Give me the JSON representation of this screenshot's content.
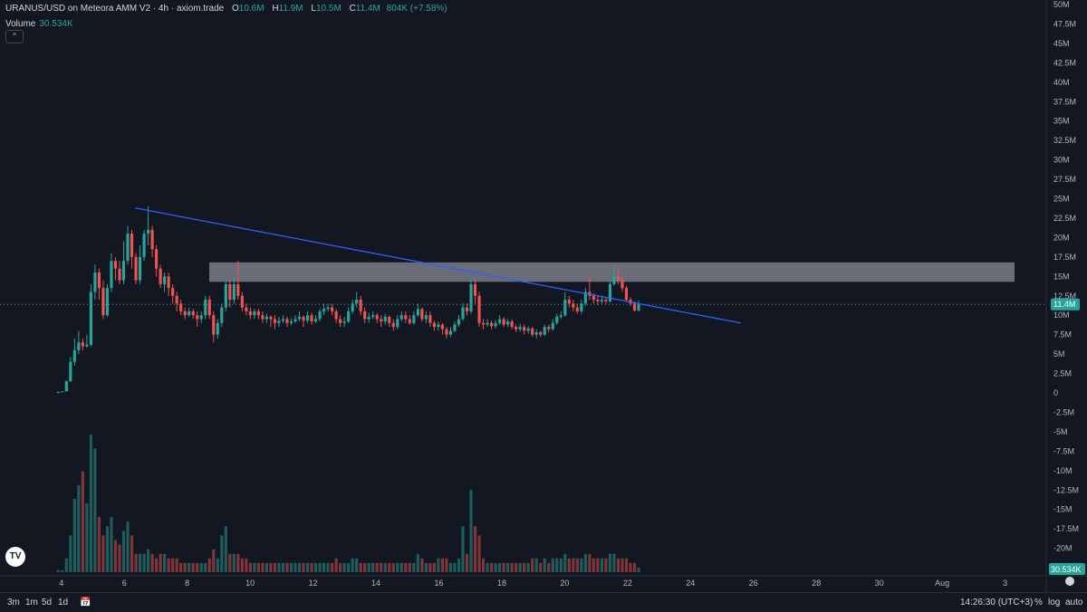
{
  "legend": {
    "symbol": "URANUS/USD on Meteora AMM V2 · 4h · axiom.trade",
    "o_label": "O",
    "o": "10.6M",
    "h_label": "H",
    "h": "11.9M",
    "l_label": "L",
    "l": "10.5M",
    "c_label": "C",
    "c": "11.4M",
    "change": "804K (+7.58%)"
  },
  "volume_legend": {
    "label": "Volume",
    "value": "30.534K"
  },
  "collapse_icon": "chevron-up-icon",
  "colors": {
    "up": "#26a69a",
    "down": "#ef5350",
    "trendline": "#2962ff",
    "zone": "#b2b5be",
    "bg": "#131722"
  },
  "price_label": "11.4M",
  "volume_label": "30.534K",
  "bottombar": {
    "ranges": [
      "3m",
      "1m",
      "5d",
      "1d"
    ],
    "time": "14:26:30 (UTC+3)",
    "percent": "%",
    "log": "log",
    "auto": "auto"
  },
  "chart_data": {
    "type": "candlestick",
    "y_axis": {
      "min": -22.5,
      "max": 50,
      "unit": "M",
      "ticks": [
        "50M",
        "47.5M",
        "45M",
        "42.5M",
        "40M",
        "37.5M",
        "35M",
        "32.5M",
        "30M",
        "27.5M",
        "25M",
        "22.5M",
        "20M",
        "17.5M",
        "15M",
        "12.5M",
        "10M",
        "7.5M",
        "5M",
        "2.5M",
        "0",
        "-2.5M",
        "-5M",
        "-7.5M",
        "-10M",
        "-12.5M",
        "-15M",
        "-17.5M",
        "-20M"
      ]
    },
    "x_axis": {
      "day_range": [
        3.2,
        34.3
      ],
      "ticks": [
        {
          "label": "4",
          "day": 4
        },
        {
          "label": "6",
          "day": 6
        },
        {
          "label": "8",
          "day": 8
        },
        {
          "label": "10",
          "day": 10
        },
        {
          "label": "12",
          "day": 12
        },
        {
          "label": "14",
          "day": 14
        },
        {
          "label": "16",
          "day": 16
        },
        {
          "label": "18",
          "day": 18
        },
        {
          "label": "20",
          "day": 20
        },
        {
          "label": "22",
          "day": 22
        },
        {
          "label": "24",
          "day": 24
        },
        {
          "label": "26",
          "day": 26
        },
        {
          "label": "28",
          "day": 28
        },
        {
          "label": "30",
          "day": 30
        },
        {
          "label": "Aug",
          "day": 32
        },
        {
          "label": "3",
          "day": 34
        }
      ]
    },
    "candles": [
      [
        0.1,
        0.1,
        0.2,
        0.1,
        0.5
      ],
      [
        0.2,
        0.2,
        0.2,
        0.2,
        0.4
      ],
      [
        0.2,
        1.5,
        1.6,
        0.2,
        3
      ],
      [
        1.5,
        4,
        4.6,
        1.4,
        8
      ],
      [
        4,
        5.5,
        7,
        3.5,
        16
      ],
      [
        5.5,
        6.5,
        8,
        5,
        19
      ],
      [
        6.5,
        6,
        7,
        5.5,
        22
      ],
      [
        6,
        6.2,
        7.5,
        5.8,
        15
      ],
      [
        6.2,
        13,
        14,
        6,
        30
      ],
      [
        13,
        15.5,
        16.5,
        12,
        27
      ],
      [
        15.5,
        13.5,
        16,
        12,
        12
      ],
      [
        13.5,
        10,
        14.5,
        9.5,
        8
      ],
      [
        10,
        13.5,
        14,
        9.8,
        10
      ],
      [
        13.5,
        17,
        18,
        13,
        12
      ],
      [
        17,
        16,
        17.5,
        14.5,
        7
      ],
      [
        16,
        14.5,
        17,
        14,
        6
      ],
      [
        14.5,
        17,
        19.5,
        14,
        9
      ],
      [
        17,
        20.5,
        21.5,
        16.5,
        11
      ],
      [
        20.5,
        17.5,
        21,
        16,
        8
      ],
      [
        17.5,
        14.5,
        18,
        14,
        4
      ],
      [
        14.5,
        17.5,
        19,
        14,
        4
      ],
      [
        17.5,
        20.5,
        21,
        17,
        4
      ],
      [
        20.5,
        21,
        24,
        19,
        5
      ],
      [
        21,
        18.5,
        21.5,
        17.5,
        4
      ],
      [
        18.5,
        16,
        19,
        15,
        3
      ],
      [
        16,
        14,
        16.5,
        13.5,
        4
      ],
      [
        14,
        15,
        15.5,
        13,
        4
      ],
      [
        15,
        13.5,
        15.5,
        12.5,
        3
      ],
      [
        13.5,
        12.5,
        14,
        11.5,
        3
      ],
      [
        12.5,
        11.5,
        13,
        10.5,
        3
      ],
      [
        11.5,
        10.5,
        12,
        10,
        2
      ],
      [
        10.5,
        10,
        11,
        9.5,
        2
      ],
      [
        10,
        10.5,
        11,
        9.8,
        2
      ],
      [
        10.5,
        10,
        10.8,
        9.5,
        2
      ],
      [
        10,
        9.5,
        10.5,
        8.5,
        2
      ],
      [
        9.5,
        10,
        10.5,
        9,
        2
      ],
      [
        10,
        12,
        12.5,
        9.5,
        2
      ],
      [
        12,
        10,
        12.5,
        9.5,
        3
      ],
      [
        10,
        7.5,
        10.5,
        6.5,
        5
      ],
      [
        7.5,
        9,
        9.5,
        7,
        3
      ],
      [
        9,
        11,
        11.5,
        8.5,
        8
      ],
      [
        11,
        14,
        14.5,
        10.5,
        10
      ],
      [
        14,
        12,
        14.5,
        11,
        4
      ],
      [
        12,
        14,
        15,
        11.5,
        4
      ],
      [
        14,
        12.5,
        17,
        12,
        4
      ],
      [
        12.5,
        11,
        13,
        10.5,
        3
      ],
      [
        11,
        10.5,
        11.5,
        10,
        3
      ],
      [
        10.5,
        10,
        11,
        9.5,
        2
      ],
      [
        10,
        10.5,
        10.8,
        9.5,
        2
      ],
      [
        10.5,
        10,
        10.8,
        9.5,
        2
      ],
      [
        10,
        9.5,
        10.5,
        9,
        2
      ],
      [
        9.5,
        9.8,
        10.2,
        9,
        2
      ],
      [
        9.8,
        9.5,
        10,
        8.5,
        2
      ],
      [
        9.5,
        9,
        10,
        8.2,
        2
      ],
      [
        9,
        9.3,
        9.8,
        8.5,
        2
      ],
      [
        9.3,
        9.5,
        10,
        9,
        2
      ],
      [
        9.5,
        9,
        9.8,
        8.5,
        2
      ],
      [
        9,
        9.2,
        9.6,
        8.7,
        2
      ],
      [
        9.2,
        9.5,
        10,
        9,
        2
      ],
      [
        9.5,
        9.8,
        10.5,
        9.2,
        2
      ],
      [
        9.8,
        9.3,
        10,
        8.5,
        2
      ],
      [
        9.3,
        10,
        10.5,
        9,
        2
      ],
      [
        10,
        9.2,
        10.3,
        8.8,
        2
      ],
      [
        9.2,
        9.5,
        10,
        9,
        2
      ],
      [
        9.5,
        10.5,
        10.8,
        9.2,
        2
      ],
      [
        10.5,
        10.8,
        11.5,
        10,
        2
      ],
      [
        10.8,
        11,
        11.5,
        10.5,
        2
      ],
      [
        11,
        10.5,
        11.5,
        10,
        2
      ],
      [
        10.5,
        9.5,
        10.8,
        9,
        3
      ],
      [
        9.5,
        9,
        10,
        8.5,
        2
      ],
      [
        9,
        9.2,
        9.8,
        8.5,
        2
      ],
      [
        9.2,
        10.5,
        11,
        9,
        2
      ],
      [
        10.5,
        11.5,
        12,
        10.2,
        3
      ],
      [
        11.5,
        12,
        13,
        11,
        3
      ],
      [
        12,
        10.5,
        12.5,
        10,
        2
      ],
      [
        10.5,
        9.5,
        11,
        9,
        2
      ],
      [
        9.5,
        9.8,
        10.3,
        9,
        2
      ],
      [
        9.8,
        10,
        10.5,
        9.5,
        2
      ],
      [
        10,
        9.5,
        10.3,
        9,
        2
      ],
      [
        9.5,
        9.2,
        10,
        8.5,
        2
      ],
      [
        9.2,
        9.8,
        10.2,
        8.8,
        2
      ],
      [
        9.8,
        9,
        10,
        8.5,
        2
      ],
      [
        9,
        8.5,
        9.5,
        8,
        2
      ],
      [
        8.5,
        9.5,
        10,
        8.2,
        2
      ],
      [
        9.5,
        10,
        10.5,
        9.2,
        2
      ],
      [
        10,
        9.5,
        10.5,
        9,
        2
      ],
      [
        9.5,
        9,
        10,
        8.8,
        2
      ],
      [
        9,
        10,
        10.5,
        8.8,
        2
      ],
      [
        10,
        10.8,
        11.5,
        9.8,
        4
      ],
      [
        10.8,
        9.5,
        11,
        9.2,
        3
      ],
      [
        9.5,
        10,
        10.5,
        9,
        2
      ],
      [
        10,
        9,
        10.5,
        8.5,
        2
      ],
      [
        9,
        8.5,
        9.3,
        8,
        2
      ],
      [
        8.5,
        8.8,
        9.2,
        8,
        3
      ],
      [
        8.8,
        8.2,
        9,
        7.5,
        3
      ],
      [
        8.2,
        7.5,
        8.5,
        7,
        3
      ],
      [
        7.5,
        8,
        8.5,
        7.2,
        2
      ],
      [
        8,
        8.8,
        9.2,
        7.8,
        2
      ],
      [
        8.8,
        9.5,
        10,
        8.5,
        3
      ],
      [
        9.5,
        11,
        11.5,
        9.3,
        10
      ],
      [
        11,
        10.5,
        11.5,
        10,
        4
      ],
      [
        10.5,
        14,
        14.5,
        10.2,
        18
      ],
      [
        14,
        12.5,
        14.5,
        11.5,
        10
      ],
      [
        12.5,
        9,
        13,
        8.5,
        8
      ],
      [
        9,
        8.8,
        9.5,
        8.2,
        3
      ],
      [
        8.8,
        9,
        9.5,
        8.5,
        2
      ],
      [
        9,
        8.6,
        9.3,
        8.2,
        2
      ],
      [
        8.6,
        9,
        9.4,
        8.3,
        2
      ],
      [
        9,
        9.5,
        10,
        8.8,
        2
      ],
      [
        9.5,
        8.8,
        9.8,
        8.5,
        2
      ],
      [
        8.8,
        9.2,
        9.5,
        8.5,
        2
      ],
      [
        9.2,
        8.5,
        9.5,
        8.2,
        2
      ],
      [
        8.5,
        8.2,
        8.8,
        7.8,
        2
      ],
      [
        8.2,
        8.5,
        8.9,
        7.9,
        2
      ],
      [
        8.5,
        8,
        8.8,
        7.5,
        2
      ],
      [
        8,
        8.3,
        8.6,
        7.6,
        2
      ],
      [
        8.3,
        7.5,
        8.5,
        7.2,
        3
      ],
      [
        7.5,
        7.8,
        8.2,
        7,
        3
      ],
      [
        7.8,
        7.5,
        8,
        7.2,
        2
      ],
      [
        7.5,
        8.5,
        8.8,
        7.3,
        3
      ],
      [
        8.5,
        8.2,
        8.8,
        7.8,
        2
      ],
      [
        8.2,
        9,
        9.5,
        8,
        3
      ],
      [
        9,
        9.8,
        10.2,
        8.8,
        3
      ],
      [
        9.8,
        10,
        10.5,
        9.5,
        3
      ],
      [
        10,
        12,
        13,
        9.8,
        4
      ],
      [
        12,
        11.5,
        12.5,
        11,
        3
      ],
      [
        11.5,
        11,
        12,
        10.5,
        3
      ],
      [
        11,
        10.5,
        11.5,
        10.2,
        3
      ],
      [
        10.5,
        11.5,
        12,
        10.2,
        3
      ],
      [
        11.5,
        13,
        13.5,
        11.2,
        4
      ],
      [
        13,
        12.5,
        15,
        12,
        4
      ],
      [
        12.5,
        12,
        12.8,
        11.5,
        3
      ],
      [
        12,
        11.8,
        12.5,
        11.3,
        3
      ],
      [
        11.8,
        12,
        12.5,
        11.5,
        3
      ],
      [
        12,
        11.8,
        12.3,
        11.5,
        3
      ],
      [
        11.8,
        14,
        14.5,
        11.6,
        4
      ],
      [
        14,
        15,
        16.5,
        13.8,
        4
      ],
      [
        15,
        14.5,
        16,
        14,
        3
      ],
      [
        14.5,
        13.5,
        15,
        13,
        3
      ],
      [
        13.5,
        12,
        13.8,
        11.7,
        3
      ],
      [
        12,
        11.5,
        12.3,
        11.2,
        2
      ],
      [
        11.5,
        10.6,
        11.8,
        10.5,
        2
      ],
      [
        10.6,
        11.4,
        11.9,
        10.5,
        1
      ]
    ],
    "trendline": [
      [
        6.35,
        23.8
      ],
      [
        25.6,
        9.0
      ]
    ],
    "zone": {
      "from_day": 8.7,
      "to_day": 34.3,
      "low": 14.3,
      "high": 16.8
    }
  }
}
